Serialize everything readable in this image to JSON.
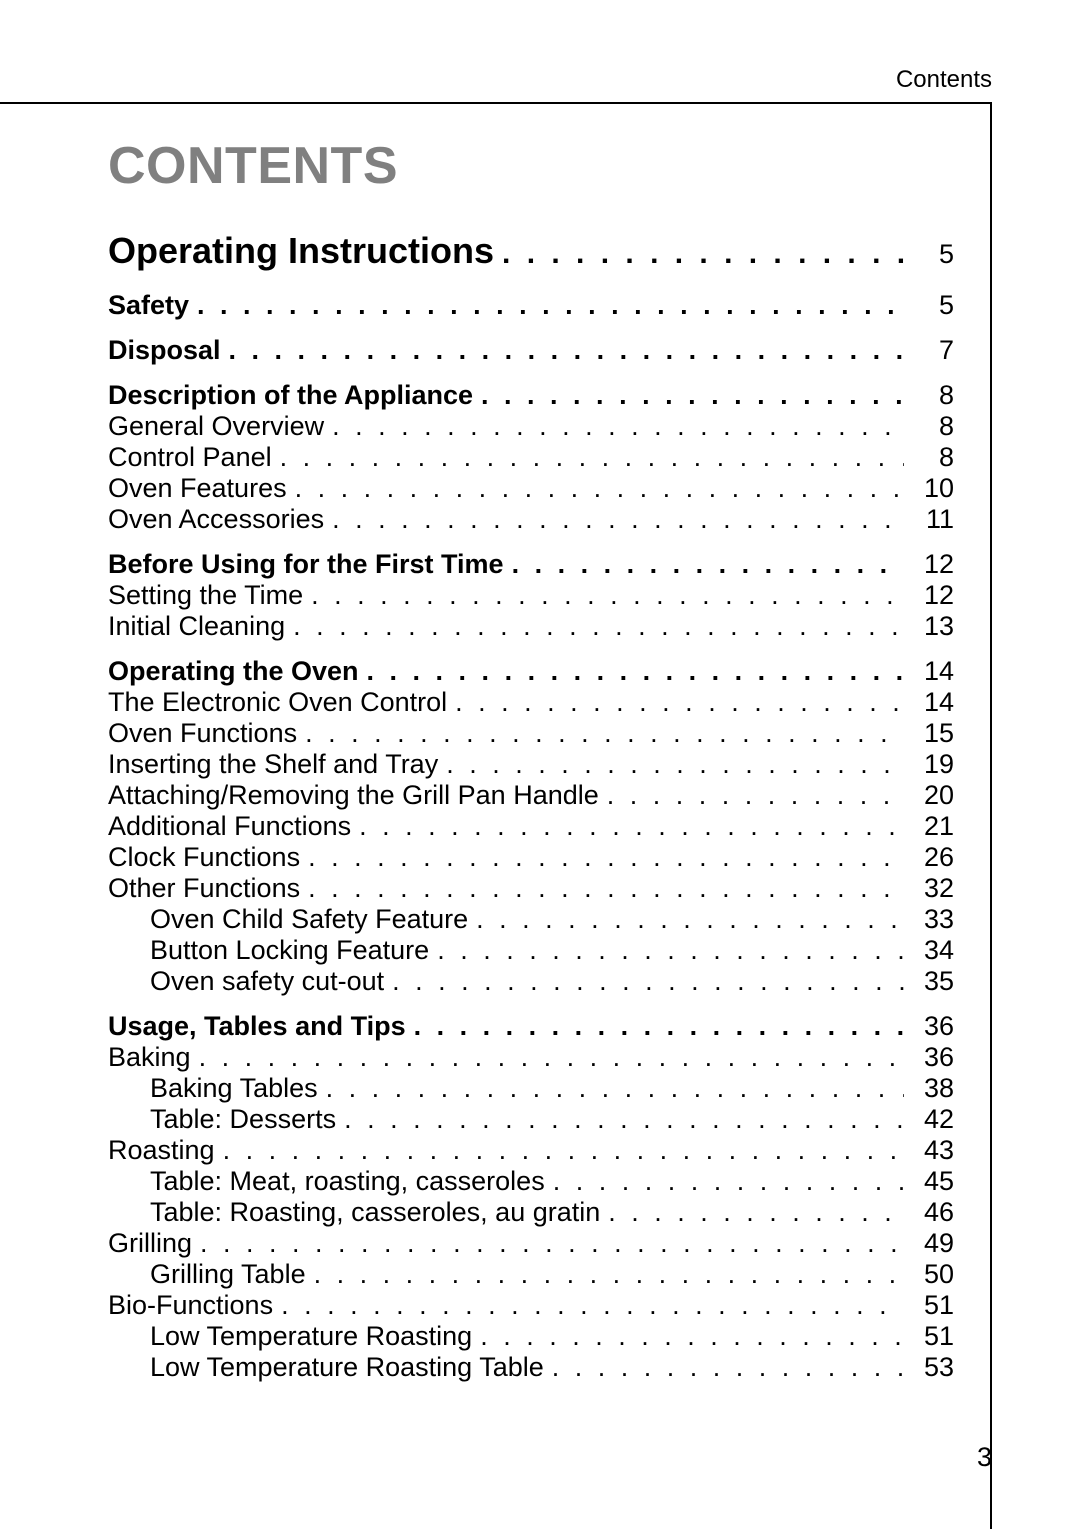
{
  "running_head": "Contents",
  "title": "CONTENTS",
  "page_number": "3",
  "dot_fill": ". . . . . . . . . . . . . . . . . . . . . . . . . . . . . . . . . . . . . . . . . . . . . . . . . . . . . . . . . . . . . . . . . . . . . . . . . . . . . . . . . . . . . . . . . . . . . . . .",
  "colors": {
    "title_gray": "#808080",
    "text": "#000000",
    "rule": "#000000",
    "background": "#ffffff"
  },
  "typography": {
    "title_fontsize_pt": 39,
    "level0_fontsize_pt": 27,
    "body_fontsize_pt": 20,
    "running_head_fontsize_pt": 18,
    "pagenum_fontsize_pt": 20
  },
  "toc": [
    {
      "level": 0,
      "label": "Operating Instructions",
      "page": "5",
      "group_end": true
    },
    {
      "level": 1,
      "label": "Safety",
      "page": "5",
      "group_end": true
    },
    {
      "level": 1,
      "label": "Disposal",
      "page": "7",
      "group_end": true
    },
    {
      "level": 1,
      "label": "Description of the Appliance",
      "page": "8"
    },
    {
      "level": 2,
      "label": "General Overview",
      "page": "8"
    },
    {
      "level": 2,
      "label": "Control Panel",
      "page": "8"
    },
    {
      "level": 2,
      "label": "Oven Features",
      "page": "10"
    },
    {
      "level": 2,
      "label": "Oven Accessories",
      "page": "11",
      "group_end": true
    },
    {
      "level": 1,
      "label": "Before Using for the First Time",
      "page": "12"
    },
    {
      "level": 2,
      "label": "Setting the Time",
      "page": "12"
    },
    {
      "level": 2,
      "label": "Initial Cleaning",
      "page": "13",
      "group_end": true
    },
    {
      "level": 1,
      "label": "Operating the Oven",
      "page": "14"
    },
    {
      "level": 2,
      "label": "The Electronic Oven Control",
      "page": "14"
    },
    {
      "level": 2,
      "label": "Oven Functions",
      "page": "15"
    },
    {
      "level": 2,
      "label": "Inserting the Shelf and Tray",
      "page": "19"
    },
    {
      "level": 2,
      "label": "Attaching/Removing the Grill Pan Handle",
      "page": "20"
    },
    {
      "level": 2,
      "label": "Additional Functions",
      "page": "21"
    },
    {
      "level": 2,
      "label": "Clock Functions",
      "page": "26"
    },
    {
      "level": 2,
      "label": "Other Functions",
      "page": "32"
    },
    {
      "level": 3,
      "label": "Oven Child Safety Feature",
      "page": "33"
    },
    {
      "level": 3,
      "label": "Button Locking Feature",
      "page": "34"
    },
    {
      "level": 3,
      "label": "Oven safety cut-out",
      "page": "35",
      "group_end": true
    },
    {
      "level": 1,
      "label": "Usage, Tables and Tips",
      "page": "36"
    },
    {
      "level": 2,
      "label": "Baking",
      "page": "36"
    },
    {
      "level": 3,
      "label": "Baking Tables",
      "page": "38"
    },
    {
      "level": 3,
      "label": "Table: Desserts",
      "page": "42"
    },
    {
      "level": 2,
      "label": "Roasting",
      "page": "43"
    },
    {
      "level": 3,
      "label": "Table: Meat, roasting, casseroles",
      "page": "45"
    },
    {
      "level": 3,
      "label": "Table: Roasting, casseroles, au gratin",
      "page": "46"
    },
    {
      "level": 2,
      "label": "Grilling",
      "page": "49"
    },
    {
      "level": 3,
      "label": "Grilling Table",
      "page": "50"
    },
    {
      "level": 2,
      "label": "Bio-Functions",
      "page": "51"
    },
    {
      "level": 3,
      "label": "Low Temperature Roasting",
      "page": "51"
    },
    {
      "level": 3,
      "label": "Low Temperature Roasting Table",
      "page": "53"
    }
  ]
}
